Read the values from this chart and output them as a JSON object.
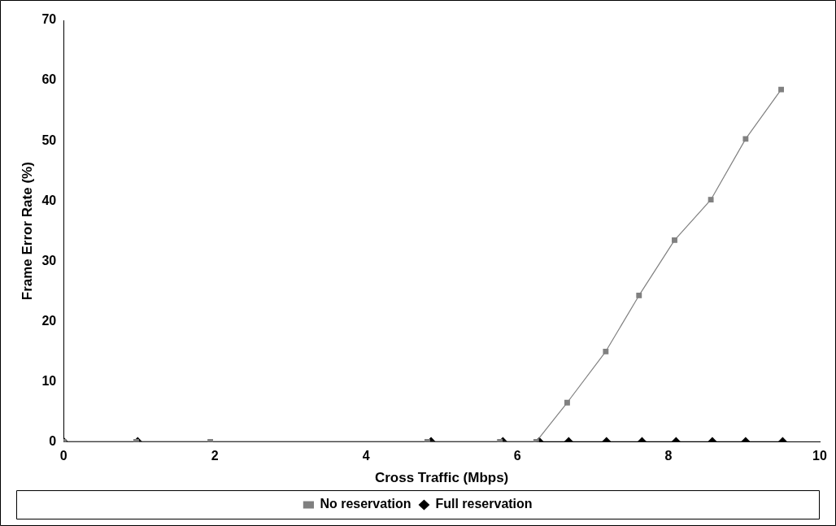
{
  "chart_data": {
    "type": "line",
    "xlabel": "Cross Traffic (Mbps)",
    "ylabel": "Frame Error Rate (%)",
    "xlim": [
      0,
      10
    ],
    "xticks": [
      0,
      2,
      4,
      6,
      8,
      10
    ],
    "ylim": [
      0,
      70
    ],
    "yticks": [
      0,
      10,
      20,
      30,
      40,
      50,
      60,
      70
    ],
    "grid": false,
    "legend": "bottom",
    "line_style": "solid",
    "series": [
      {
        "name": "No reservation",
        "color": "#808080",
        "marker": "square",
        "x": [
          0,
          0.96,
          1.94,
          4.81,
          5.77,
          6.25,
          6.66,
          7.17,
          7.61,
          8.08,
          8.56,
          9.02,
          9.49
        ],
        "values": [
          0,
          0,
          0,
          0,
          0,
          0,
          6.5,
          15,
          24.3,
          33.5,
          40.2,
          50.3,
          58.5
        ]
      },
      {
        "name": "Full reservation",
        "color": "#000000",
        "marker": "diamond",
        "x": [
          0,
          0.98,
          4.86,
          5.81,
          6.29,
          6.68,
          7.18,
          7.65,
          8.1,
          8.58,
          9.02,
          9.51
        ],
        "values": [
          0,
          0,
          0,
          0,
          0,
          0,
          0,
          0,
          0,
          0,
          0,
          0
        ]
      }
    ]
  }
}
